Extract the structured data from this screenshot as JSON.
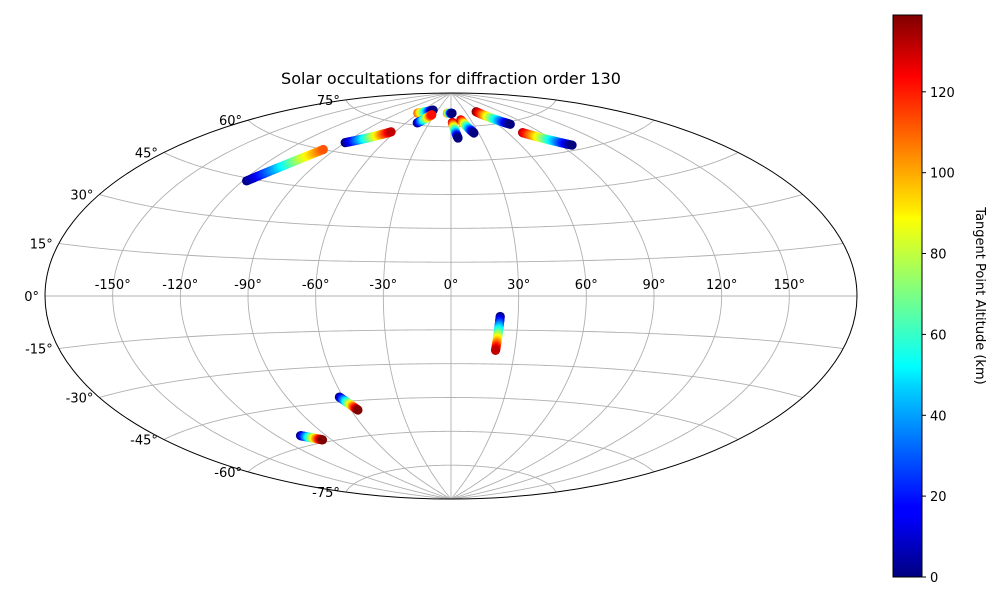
{
  "chart_data": {
    "type": "scatter",
    "projection": "aitoff",
    "title": "Solar occultations for diffraction order 130",
    "xlabel": "",
    "ylabel": "",
    "lon_ticks": [
      -150,
      -120,
      -90,
      -60,
      -30,
      0,
      30,
      60,
      90,
      120,
      150
    ],
    "lon_tick_labels": [
      "-150°",
      "-120°",
      "-90°",
      "-60°",
      "-30°",
      "0°",
      "30°",
      "60°",
      "90°",
      "120°",
      "150°"
    ],
    "lat_ticks": [
      -75,
      -60,
      -45,
      -30,
      -15,
      0,
      15,
      30,
      45,
      60,
      75
    ],
    "lat_tick_labels": [
      "-75°",
      "-60°",
      "-45°",
      "-30°",
      "-15°",
      "0°",
      "15°",
      "30°",
      "45°",
      "60°",
      "75°"
    ],
    "grid": true,
    "colorbar": {
      "label": "Tangent Point Altitude (km)",
      "colormap": "jet",
      "range": [
        0,
        139
      ],
      "ticks": [
        0,
        20,
        40,
        60,
        80,
        100,
        120
      ],
      "tick_labels": [
        "0",
        "20",
        "40",
        "60",
        "80",
        "100",
        "120"
      ]
    },
    "tracks": [
      {
        "lon_start": -118,
        "lat_start": 44,
        "alt_start": 0,
        "lon_end": -98,
        "lat_end": 60,
        "alt_end": 110
      },
      {
        "lon_start": -90,
        "lat_start": 64,
        "alt_start": 0,
        "lon_end": -64,
        "lat_end": 71,
        "alt_end": 130
      },
      {
        "lon_start": -62,
        "lat_start": 80,
        "alt_start": 110,
        "lon_end": -40,
        "lat_end": 82,
        "alt_end": 0
      },
      {
        "lon_start": -46,
        "lat_start": 76,
        "alt_start": 0,
        "lon_end": -35,
        "lat_end": 80,
        "alt_end": 120
      },
      {
        "lon_start": -7,
        "lat_start": 81,
        "alt_start": 110,
        "lon_end": 2,
        "lat_end": 81,
        "alt_end": 0
      },
      {
        "lon_start": 2,
        "lat_start": 77,
        "alt_start": 130,
        "lon_end": 7,
        "lat_end": 70,
        "alt_end": 0
      },
      {
        "lon_start": 15,
        "lat_start": 78,
        "alt_start": 130,
        "lon_end": 25,
        "lat_end": 72,
        "alt_end": 0
      },
      {
        "lon_start": 51,
        "lat_start": 81,
        "alt_start": 139,
        "lon_end": 74,
        "lat_end": 74,
        "alt_end": 0
      },
      {
        "lon_start": 74,
        "lat_start": 70,
        "alt_start": 130,
        "lon_end": 98,
        "lat_end": 62,
        "alt_end": 0
      },
      {
        "lon_start": 22,
        "lat_start": -9,
        "alt_start": 0,
        "lon_end": 21,
        "lat_end": -24,
        "alt_end": 130
      },
      {
        "lon_start": -62,
        "lat_start": -43,
        "alt_start": 0,
        "lon_end": -56,
        "lat_end": -49,
        "alt_end": 139
      },
      {
        "lon_start": -106,
        "lat_start": -56,
        "alt_start": 0,
        "lon_end": -96,
        "lat_end": -59,
        "alt_end": 139
      }
    ]
  }
}
